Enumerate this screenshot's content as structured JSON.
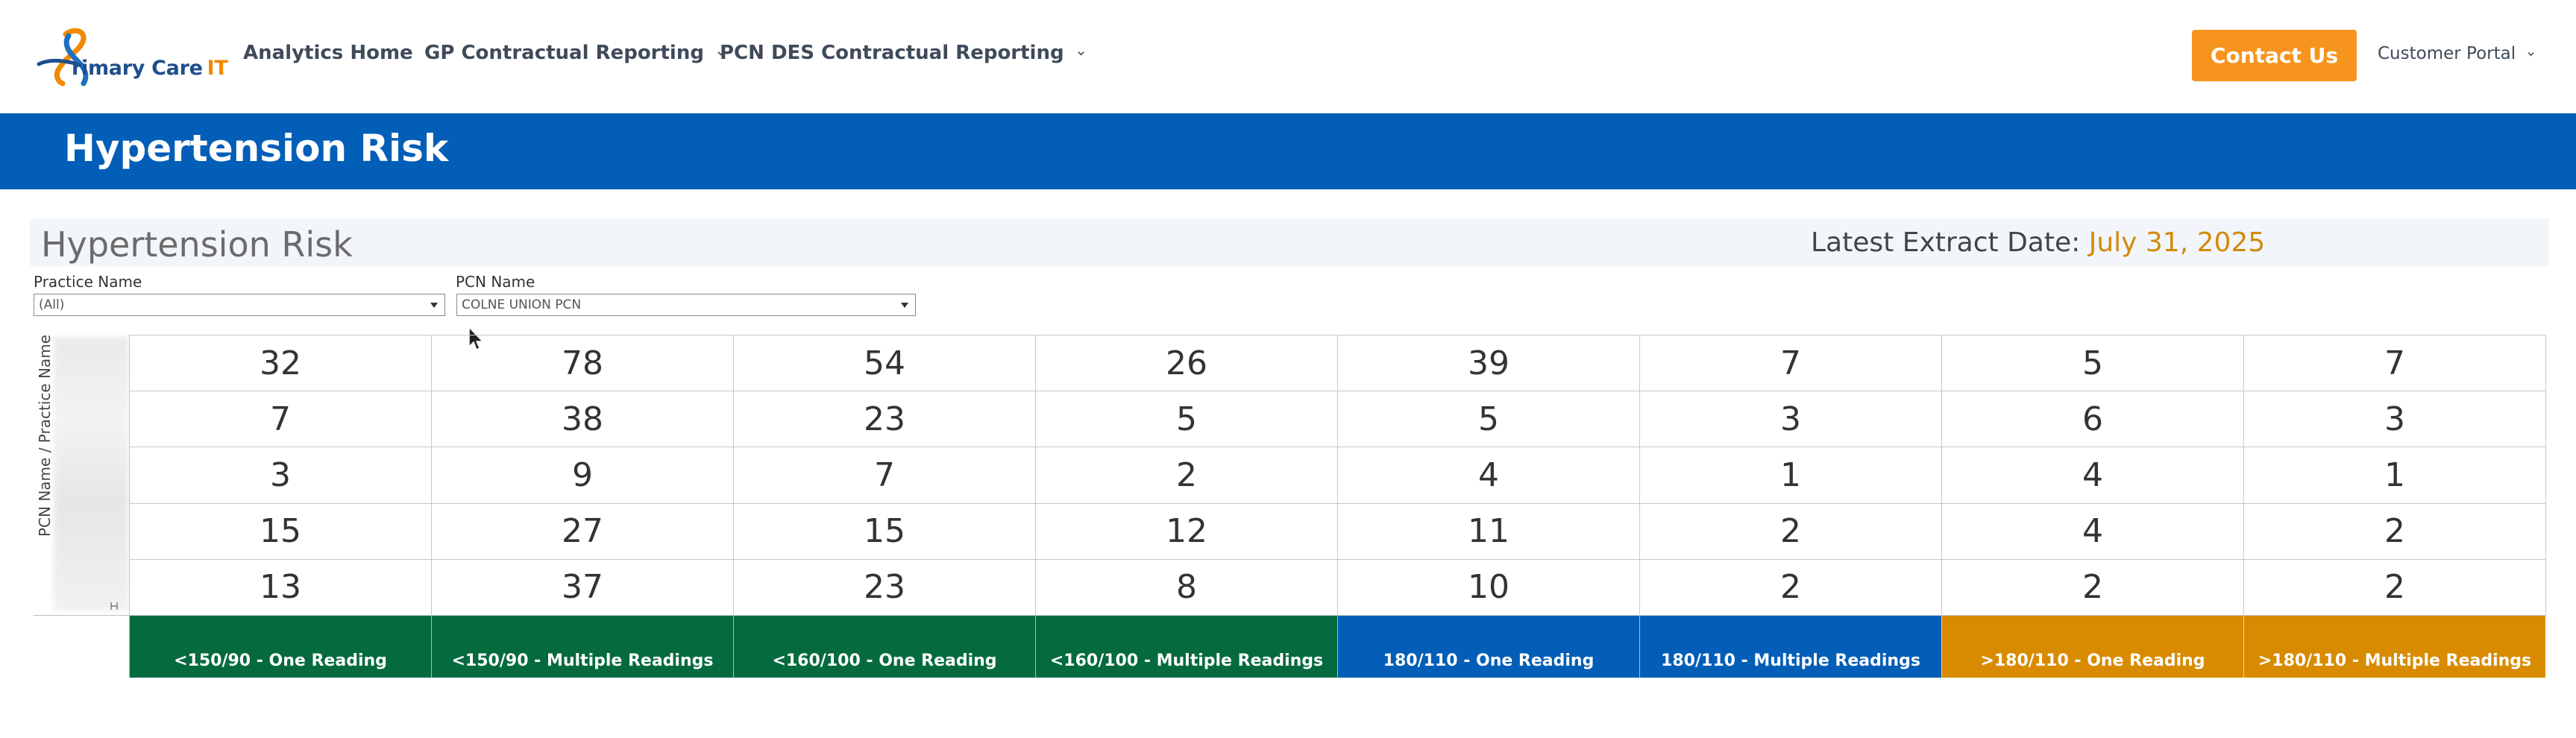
{
  "brand": {
    "logo_text": "rimary Care",
    "logo_suffix": "IT",
    "colors": {
      "blue": "#035eb7",
      "orange": "#f7941d",
      "green": "#056b3f",
      "gold": "#d88b00"
    }
  },
  "nav": {
    "items": [
      {
        "label": "Analytics Home",
        "dropdown": false
      },
      {
        "label": "GP Contractual Reporting",
        "dropdown": true
      },
      {
        "label": "PCN DES Contractual Reporting",
        "dropdown": true
      }
    ],
    "contact_label": "Contact Us",
    "portal_label": "Customer Portal"
  },
  "banner": {
    "title": "Hypertension Risk"
  },
  "dashboard": {
    "title": "Hypertension Risk",
    "extract_label": "Latest Extract Date:",
    "extract_date": "July 31, 2025",
    "filters": {
      "practice": {
        "label": "Practice Name",
        "value": "(All)"
      },
      "pcn": {
        "label": "PCN Name",
        "value": "COLNE UNION PCN"
      }
    },
    "axis_label": "PCN Name / Practice Name",
    "columns": [
      {
        "label": "<150/90 - One Reading",
        "color": "#056b3f"
      },
      {
        "label": "<150/90 - Multiple Readings",
        "color": "#056b3f"
      },
      {
        "label": "<160/100 - One Reading",
        "color": "#056b3f"
      },
      {
        "label": "<160/100 - Multiple Readings",
        "color": "#056b3f"
      },
      {
        "label": "180/110 - One Reading",
        "color": "#035eb7"
      },
      {
        "label": "180/110 - Multiple Readings",
        "color": "#035eb7"
      },
      {
        "label": ">180/110 - One Reading",
        "color": "#d88b00"
      },
      {
        "label": ">180/110 - Multiple Readings",
        "color": "#d88b00"
      }
    ],
    "rows": [
      [
        "32",
        "78",
        "54",
        "26",
        "39",
        "7",
        "5",
        "7"
      ],
      [
        "7",
        "38",
        "23",
        "5",
        "5",
        "3",
        "6",
        "3"
      ],
      [
        "3",
        "9",
        "7",
        "2",
        "4",
        "1",
        "4",
        "1"
      ],
      [
        "15",
        "27",
        "15",
        "12",
        "11",
        "2",
        "4",
        "2"
      ],
      [
        "13",
        "37",
        "23",
        "8",
        "10",
        "2",
        "2",
        "2"
      ]
    ]
  }
}
